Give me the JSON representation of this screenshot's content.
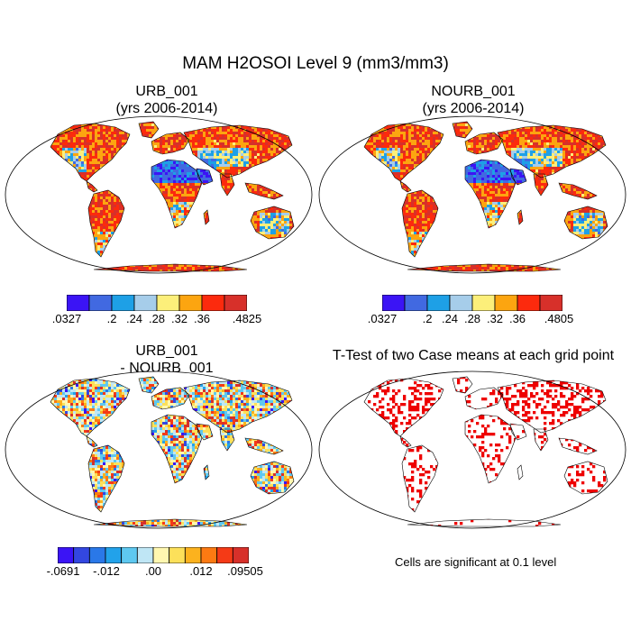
{
  "figure": {
    "title": "MAM H2OSOI Level 9 (mm3/mm3)",
    "colors": {
      "frame": "#000000",
      "coast": "#000000",
      "significant": "#ee0000"
    }
  },
  "panels": [
    {
      "id": "urb",
      "title_line1": "URB_001",
      "title_line2": "(yrs 2006-2014)",
      "colorbar": {
        "colors": [
          "#3b14f5",
          "#4169e1",
          "#1ea0e6",
          "#a6cdea",
          "#fcef7a",
          "#fca510",
          "#fc2a0d",
          "#d7302a"
        ],
        "labels": [
          ".0327",
          ".2",
          ".24",
          ".28",
          ".32",
          ".36",
          ".4825"
        ]
      }
    },
    {
      "id": "nourb",
      "title_line1": "NOURB_001",
      "title_line2": "(yrs 2006-2014)",
      "colorbar": {
        "colors": [
          "#3b14f5",
          "#4169e1",
          "#1ea0e6",
          "#a6cdea",
          "#fcef7a",
          "#fca510",
          "#fc2a0d",
          "#d7302a"
        ],
        "labels": [
          ".0327",
          ".2",
          ".24",
          ".28",
          ".32",
          ".36",
          ".4805"
        ]
      }
    },
    {
      "id": "diff",
      "title_line1": "URB_001",
      "title_line2": "- NOURB_001",
      "colorbar": {
        "colors": [
          "#3b14f5",
          "#3347e0",
          "#2a78e8",
          "#22a2ea",
          "#5ec8f0",
          "#bfe6f5",
          "#fff7b0",
          "#fce05a",
          "#fcb21e",
          "#fc7a12",
          "#f53a16",
          "#d7302a"
        ],
        "labels": [
          "-.0691",
          "-.012",
          ".00",
          ".012",
          ".09505"
        ]
      }
    },
    {
      "id": "ttest",
      "title_line1": "T-Test of two Case means at each grid point",
      "note": "Cells are significant at 0.1 level"
    }
  ]
}
